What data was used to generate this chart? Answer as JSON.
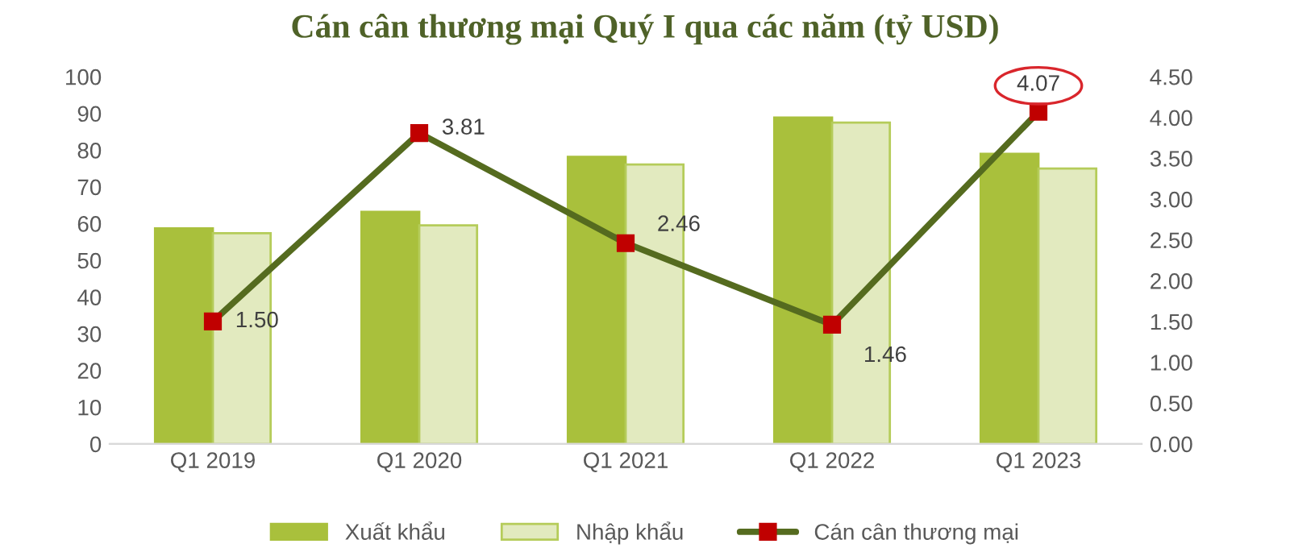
{
  "chart_data": {
    "type": "bar",
    "title": "Cán cân thương mại Quý I qua các năm (tỷ USD)",
    "categories": [
      "Q1 2019",
      "Q1 2020",
      "Q1 2021",
      "Q1 2022",
      "Q1 2023"
    ],
    "series": [
      {
        "name": "Xuất khẩu",
        "color": "#a9c03c",
        "values": [
          58.7,
          63.2,
          78.2,
          88.9,
          79.0
        ]
      },
      {
        "name": "Nhập khẩu",
        "color": "#e2eabf",
        "values": [
          57.4,
          59.5,
          76.1,
          87.5,
          75.0
        ]
      },
      {
        "name": "Cán cân thương mại",
        "type": "line",
        "axis": "y2",
        "color": "#556b1f",
        "colors": [
          "#c00000",
          "#c00000",
          "#c00000",
          "#c00000",
          "#c00000"
        ],
        "marker": "square",
        "line_style": "solid",
        "values": [
          1.5,
          3.81,
          2.46,
          1.46,
          4.07
        ],
        "value_labels": [
          "1.50",
          "3.81",
          "2.46",
          "1.46",
          "4.07"
        ]
      }
    ],
    "ylim": [
      0,
      100
    ],
    "yticks": [
      0,
      10,
      20,
      30,
      40,
      50,
      60,
      70,
      80,
      90,
      100
    ],
    "y2lim": [
      0,
      4.5
    ],
    "y2ticks": [
      {
        "value": 0,
        "label": "0.00"
      },
      {
        "value": 0.5,
        "label": "0.50"
      },
      {
        "value": 1,
        "label": "1.00"
      },
      {
        "value": 1.5,
        "label": "1.50"
      },
      {
        "value": 2,
        "label": "2.00"
      },
      {
        "value": 2.5,
        "label": "2.50"
      },
      {
        "value": 3,
        "label": "3.00"
      },
      {
        "value": 3.5,
        "label": "3.50"
      },
      {
        "value": 4,
        "label": "4.00"
      },
      {
        "value": 4.5,
        "label": "4.50"
      }
    ],
    "grid": false,
    "legend": "bottom"
  }
}
